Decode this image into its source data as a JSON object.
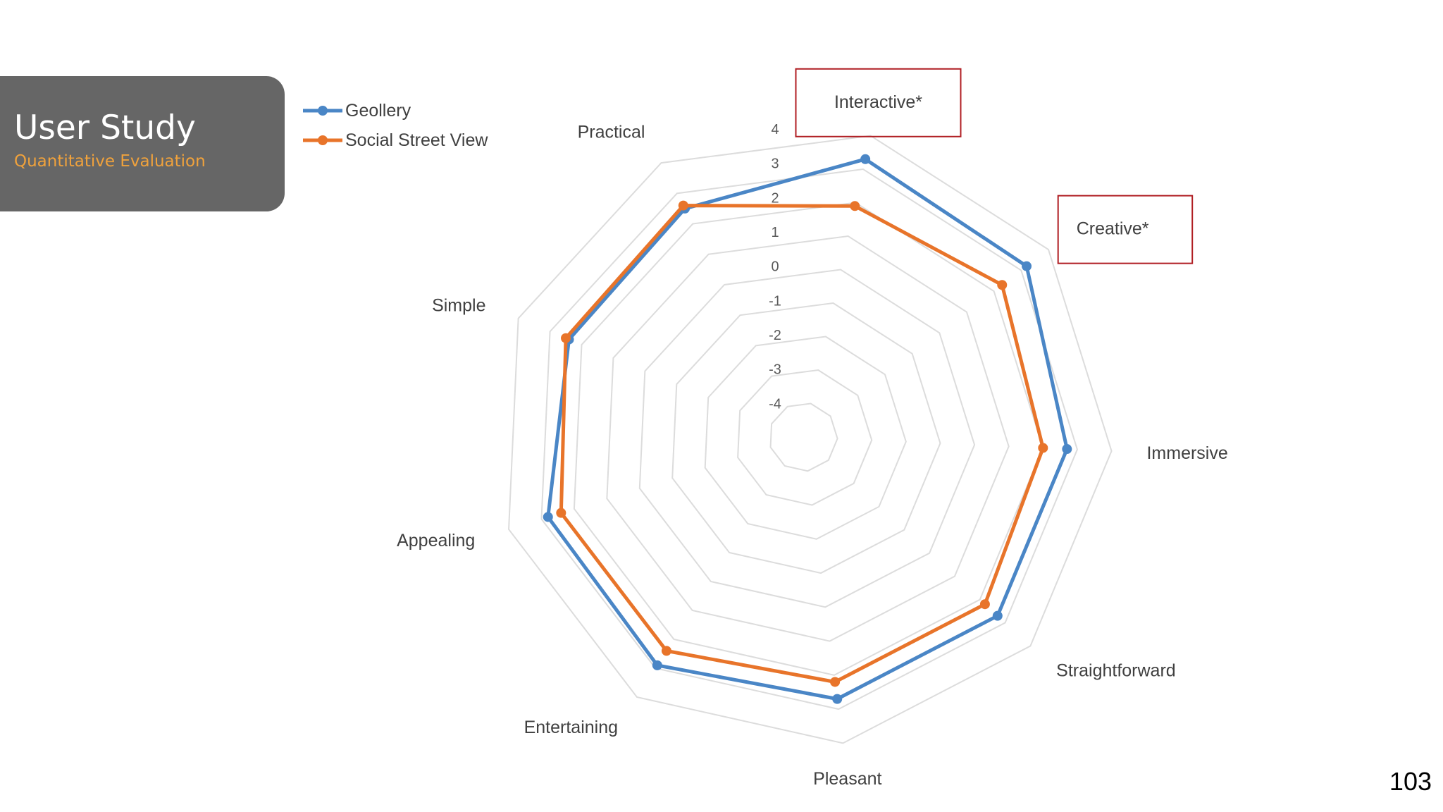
{
  "slide": {
    "title": "User Study",
    "subtitle": "Quantitative Evaluation",
    "page_number": "103"
  },
  "colors": {
    "title_card_bg": "#666666",
    "subtitle": "#f0a23c",
    "grid": "#dcdcdc",
    "highlight_box": "#b01e23"
  },
  "chart_data": {
    "type": "radar",
    "categories": [
      "Interactive*",
      "Creative*",
      "Immersive",
      "Straightforward",
      "Pleasant",
      "Entertaining",
      "Appealing",
      "Simple",
      "Practical"
    ],
    "highlighted_categories": [
      "Interactive*",
      "Creative*"
    ],
    "rlim": [
      -5,
      4
    ],
    "ticks": [
      4,
      3,
      2,
      1,
      0,
      -1,
      -2,
      -3,
      -4
    ],
    "grid": true,
    "legend_position": "top-left",
    "series": [
      {
        "name": "Geollery",
        "color": "#4a86c6",
        "values": [
          3.3,
          3.2,
          2.7,
          2.7,
          2.7,
          2.9,
          2.8,
          2.4,
          2.5
        ]
      },
      {
        "name": "Social Street View",
        "color": "#e8742a",
        "values": [
          1.9,
          2.3,
          2.0,
          2.2,
          2.2,
          2.4,
          2.4,
          2.5,
          2.6
        ]
      }
    ]
  }
}
